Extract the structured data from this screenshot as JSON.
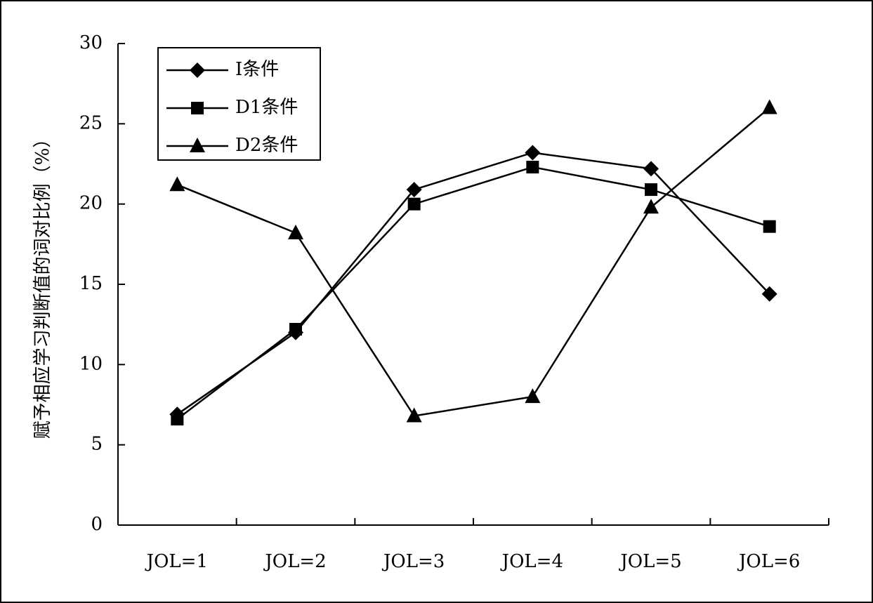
{
  "chart_data": {
    "type": "line",
    "y_label": "赋予相应学习判断值的词对比例（%）",
    "categories": [
      "JOL=1",
      "JOL=2",
      "JOL=3",
      "JOL=4",
      "JOL=5",
      "JOL=6"
    ],
    "series": [
      {
        "name": "I条件",
        "color": "#000000",
        "marker": "diamond",
        "values": [
          6.9,
          12.0,
          20.9,
          23.2,
          22.2,
          14.4
        ]
      },
      {
        "name": "D1条件",
        "color": "#000000",
        "marker": "square",
        "values": [
          6.6,
          12.2,
          20.0,
          22.3,
          20.9,
          18.6
        ]
      },
      {
        "name": "D2条件",
        "color": "#000000",
        "marker": "triangle",
        "values": [
          21.2,
          18.2,
          6.8,
          8.0,
          19.8,
          26.0
        ]
      }
    ],
    "ylim": [
      0,
      30
    ],
    "yticks": [
      0,
      5,
      10,
      15,
      20,
      25,
      30
    ],
    "grid": false,
    "legend": "top-left"
  }
}
